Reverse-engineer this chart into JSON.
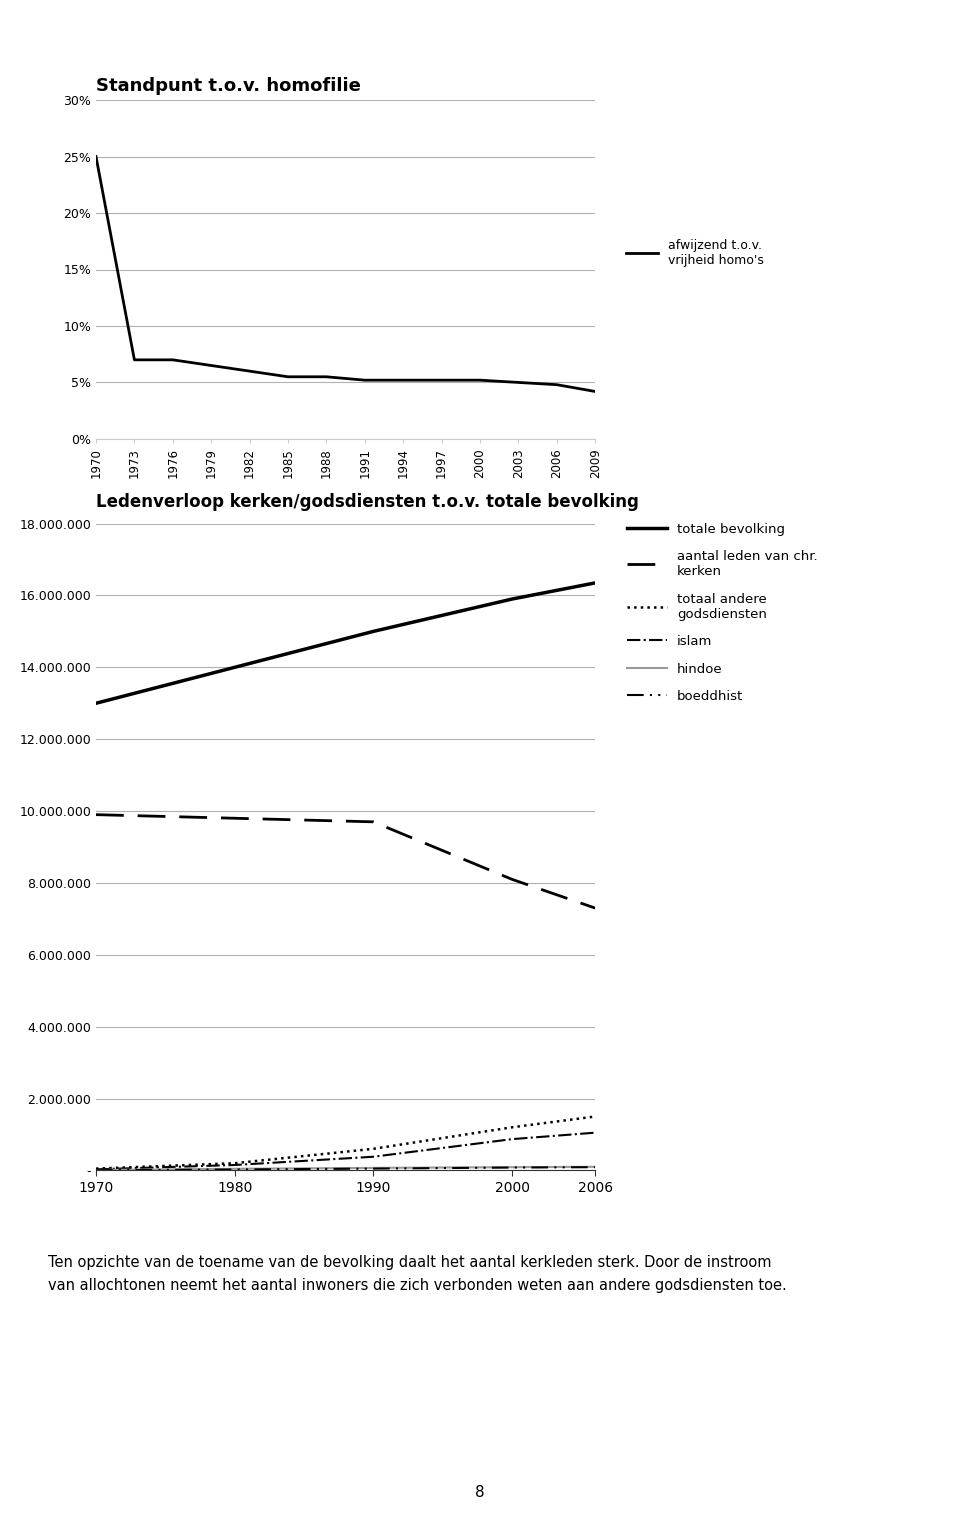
{
  "chart1": {
    "title": "Standpunt t.o.v. homofilie",
    "years": [
      1970,
      1973,
      1976,
      1979,
      1982,
      1985,
      1988,
      1991,
      1994,
      1997,
      2000,
      2003,
      2006,
      2009
    ],
    "afwijzend": [
      0.25,
      0.07,
      0.07,
      0.065,
      0.06,
      0.055,
      0.055,
      0.052,
      0.052,
      0.052,
      0.052,
      0.05,
      0.048,
      0.042
    ],
    "legend_label": "afwijzend t.o.v.\nvrijheid homo's",
    "ylim": [
      0,
      0.3
    ],
    "yticks": [
      0.0,
      0.05,
      0.1,
      0.15,
      0.2,
      0.25,
      0.3
    ],
    "ytick_labels": [
      "0%",
      "5%",
      "10%",
      "15%",
      "20%",
      "25%",
      "30%"
    ]
  },
  "chart2": {
    "title": "Ledenverloop kerken/godsdiensten t.o.v. totale bevolking",
    "years": [
      1970,
      1980,
      1990,
      2000,
      2006
    ],
    "totale_bevolking": [
      13000000,
      14000000,
      15000000,
      15900000,
      16350000
    ],
    "chr_kerken": [
      9900000,
      9800000,
      9700000,
      8100000,
      7300000
    ],
    "andere_godsdiensten": [
      50000,
      200000,
      600000,
      1200000,
      1500000
    ],
    "islam": [
      30000,
      150000,
      380000,
      870000,
      1050000
    ],
    "hindoe": [
      10000,
      45000,
      70000,
      90000,
      100000
    ],
    "boeddhist": [
      5000,
      25000,
      50000,
      80000,
      90000
    ],
    "ylim": [
      0,
      18000000
    ],
    "yticks": [
      0,
      2000000,
      4000000,
      6000000,
      8000000,
      10000000,
      12000000,
      14000000,
      16000000,
      18000000
    ],
    "ytick_labels": [
      "-",
      "2.000.000",
      "4.000.000",
      "6.000.000",
      "8.000.000",
      "10.000.000",
      "12.000.000",
      "14.000.000",
      "16.000.000",
      "18.000.000"
    ],
    "xticks": [
      1970,
      1980,
      1990,
      2000,
      2006
    ],
    "legend_labels": [
      "totale bevolking",
      "aantal leden van chr.\nkerken",
      "totaal andere\ngodsdiensten",
      "islam",
      "hindoe",
      "boeddhist"
    ]
  },
  "footer_text1": "Ten opzichte van de toename van de bevolking daalt het aantal kerkleden sterk. Door de instroom",
  "footer_text2": "van allochtonen neemt het aantal inwoners die zich verbonden weten aan andere godsdiensten toe.",
  "page_number": "8",
  "bg_color": "#ffffff",
  "line_color": "#000000",
  "grid_color": "#b0b0b0"
}
